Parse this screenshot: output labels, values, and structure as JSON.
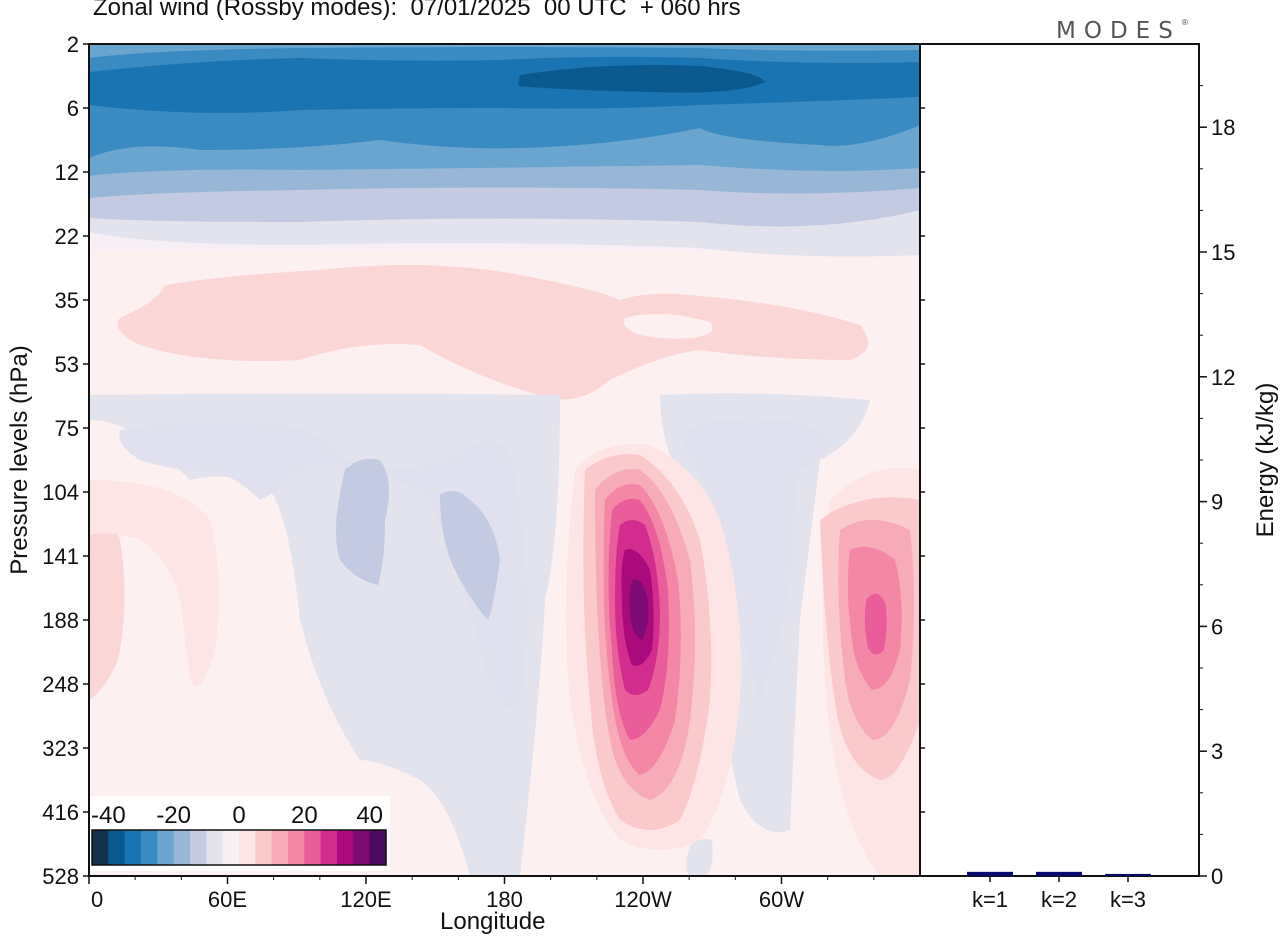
{
  "title": "Zonal wind (Rossby modes):  07/01/2025  00 UTC  + 060 hrs",
  "logo": {
    "text": "MODES",
    "mark": "®"
  },
  "chart_data": [
    {
      "type": "heatmap",
      "xlabel": "Longitude",
      "ylabel": "Pressure levels (hPa)",
      "x_ticks": [
        "0",
        "60E",
        "120E",
        "180",
        "120W",
        "60W"
      ],
      "y_ticks": [
        "2",
        "6",
        "12",
        "22",
        "35",
        "53",
        "75",
        "104",
        "141",
        "188",
        "248",
        "323",
        "416",
        "528"
      ],
      "colorbar": {
        "ticks": [
          "-40",
          "-20",
          "0",
          "20",
          "40"
        ],
        "min": -45,
        "max": 45,
        "step": 5,
        "colors": [
          "#14304f",
          "#0b5a8f",
          "#1b74b2",
          "#3a8bc2",
          "#6aa5cf",
          "#98b7d7",
          "#c3cae1",
          "#e3e3ee",
          "#f8f0f4",
          "#fde5e5",
          "#fac9cc",
          "#f7aab7",
          "#f487a6",
          "#ea5d9b",
          "#d22d8e",
          "#ab0a7c",
          "#7e0a73",
          "#4a0a5e"
        ]
      },
      "features": [
        {
          "label": "stratospheric easterly band",
          "value_min": -40,
          "value_max": -5
        },
        {
          "label": "westerly jet 120W",
          "peak": 40
        },
        {
          "label": "westerly jet 20W",
          "peak": 25
        }
      ]
    },
    {
      "type": "bar",
      "ylabel": "Energy (kJ/kg)",
      "categories": [
        "k=1",
        "k=2",
        "k=3"
      ],
      "values": [
        0.1,
        0.1,
        0.05
      ],
      "ylim": [
        0,
        20
      ],
      "y_ticks": [
        "0",
        "3",
        "6",
        "9",
        "12",
        "15",
        "18"
      ],
      "bar_color": "#0a0a6e"
    }
  ]
}
